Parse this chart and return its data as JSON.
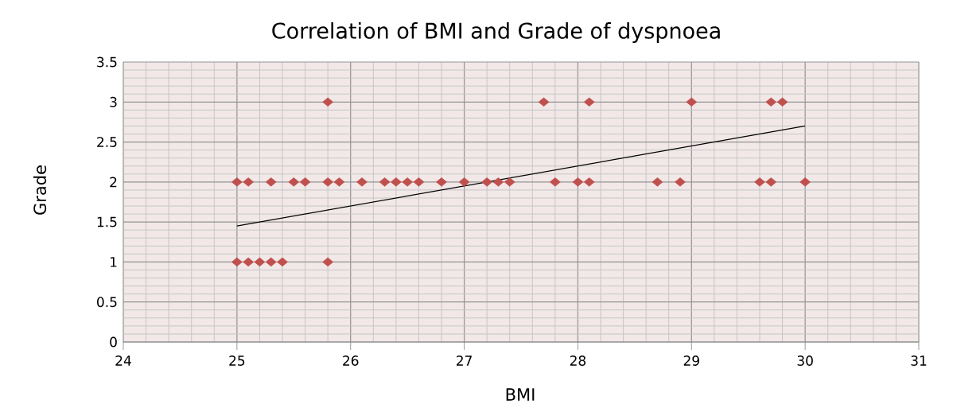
{
  "chart_data": {
    "type": "scatter",
    "title": "Correlation of BMI and Grade of dyspnoea",
    "xlabel": "BMI",
    "ylabel": "Grade",
    "xlim": [
      24,
      31
    ],
    "xticks": [
      24,
      25,
      26,
      27,
      28,
      29,
      30,
      31
    ],
    "ylim": [
      0,
      3.5
    ],
    "yticks": [
      0,
      0.5,
      1,
      1.5,
      2,
      2.5,
      3,
      3.5
    ],
    "grid": true,
    "marker": "diamond",
    "series": [
      {
        "color": "#c0504d",
        "x": [
          25.0,
          25.1,
          25.3,
          25.5,
          25.6,
          25.8,
          25.9,
          26.1,
          26.3,
          26.4,
          26.5,
          26.6,
          26.8,
          27.0,
          27.2,
          27.3,
          27.4,
          27.8,
          28.0,
          28.1,
          28.7,
          28.9,
          29.6,
          29.7,
          30.0,
          25.0,
          25.1,
          25.2,
          25.3,
          25.4,
          25.8,
          25.8,
          27.7,
          28.1,
          29.0,
          29.7,
          29.8
        ],
        "values": [
          2,
          2,
          2,
          2,
          2,
          2,
          2,
          2,
          2,
          2,
          2,
          2,
          2,
          2,
          2,
          2,
          2,
          2,
          2,
          2,
          2,
          2,
          2,
          2,
          2,
          1,
          1,
          1,
          1,
          1,
          1,
          3,
          3,
          3,
          3,
          3,
          3
        ]
      },
      {
        "type": "line",
        "color": "#000000",
        "marker": "none",
        "x": [
          25,
          30
        ],
        "values": [
          1.45,
          2.7
        ]
      }
    ]
  }
}
